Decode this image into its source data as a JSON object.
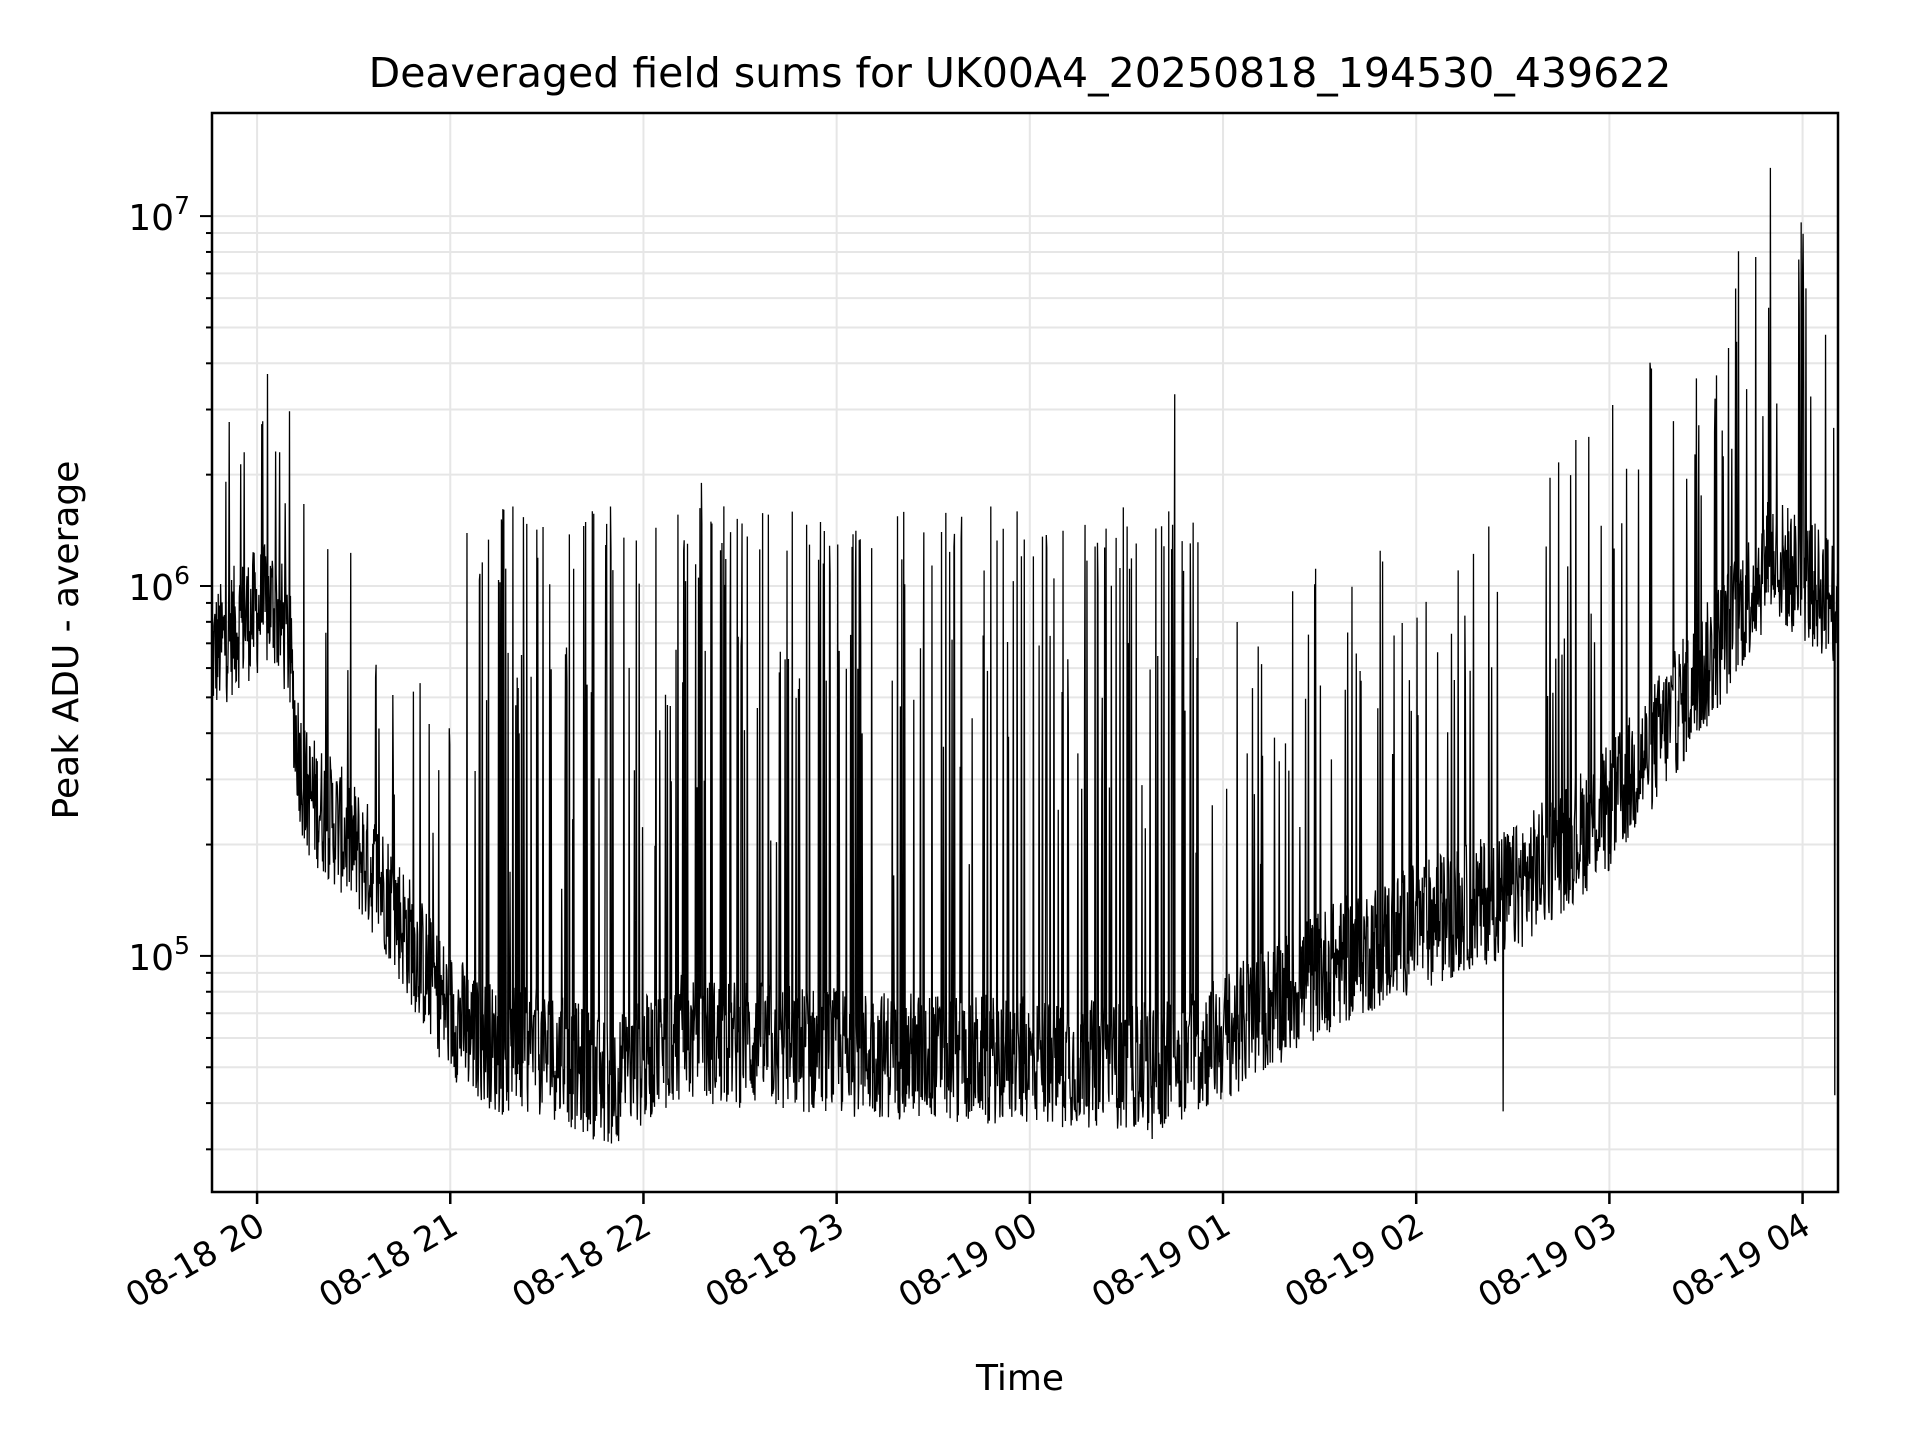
{
  "chart_data": {
    "type": "line",
    "title": "Deaveraged field sums for UK00A4_20250818_194530_439622",
    "xlabel": "Time",
    "ylabel": "Peak ADU - average",
    "x_range": [
      "2025-08-18 19:46",
      "2025-08-19 04:11"
    ],
    "y_scale": "log",
    "ylim": [
      23000,
      19000000
    ],
    "grid": true,
    "colors": {
      "line": "#000000",
      "grid": "#e6e6e6",
      "axes": "#000000"
    },
    "x_ticks": [
      {
        "time": "2025-08-18 20:00",
        "label": "08-18 20"
      },
      {
        "time": "2025-08-18 21:00",
        "label": "08-18 21"
      },
      {
        "time": "2025-08-18 22:00",
        "label": "08-18 22"
      },
      {
        "time": "2025-08-18 23:00",
        "label": "08-18 23"
      },
      {
        "time": "2025-08-19 00:00",
        "label": "08-19 00"
      },
      {
        "time": "2025-08-19 01:00",
        "label": "08-19 01"
      },
      {
        "time": "2025-08-19 02:00",
        "label": "08-19 02"
      },
      {
        "time": "2025-08-19 03:00",
        "label": "08-19 03"
      },
      {
        "time": "2025-08-19 04:00",
        "label": "08-19 04"
      }
    ],
    "y_ticks": [
      {
        "value": 100000,
        "base": "10",
        "exp": "5"
      },
      {
        "value": 1000000,
        "base": "10",
        "exp": "6"
      },
      {
        "value": 10000000,
        "base": "10",
        "exp": "7"
      }
    ],
    "series": [
      {
        "baseline": [
          {
            "time": "2025-08-18 19:46",
            "value": 650000
          },
          {
            "time": "2025-08-18 19:55",
            "value": 800000
          },
          {
            "time": "2025-08-18 20:05",
            "value": 900000
          },
          {
            "time": "2025-08-18 20:10",
            "value": 700000
          },
          {
            "time": "2025-08-18 20:12",
            "value": 400000
          },
          {
            "time": "2025-08-18 20:15",
            "value": 280000
          },
          {
            "time": "2025-08-18 20:30",
            "value": 200000
          },
          {
            "time": "2025-08-18 20:40",
            "value": 150000
          },
          {
            "time": "2025-08-18 20:50",
            "value": 100000
          },
          {
            "time": "2025-08-18 21:00",
            "value": 70000
          },
          {
            "time": "2025-08-18 21:15",
            "value": 55000
          },
          {
            "time": "2025-08-18 21:30",
            "value": 55000
          },
          {
            "time": "2025-08-18 21:50",
            "value": 45000
          },
          {
            "time": "2025-08-18 22:10",
            "value": 60000
          },
          {
            "time": "2025-08-18 23:00",
            "value": 55000
          },
          {
            "time": "2025-08-19 00:00",
            "value": 52000
          },
          {
            "time": "2025-08-19 00:40",
            "value": 50000
          },
          {
            "time": "2025-08-19 01:00",
            "value": 60000
          },
          {
            "time": "2025-08-19 01:30",
            "value": 90000
          },
          {
            "time": "2025-08-19 02:00",
            "value": 120000
          },
          {
            "time": "2025-08-19 02:30",
            "value": 150000
          },
          {
            "time": "2025-08-19 03:00",
            "value": 250000
          },
          {
            "time": "2025-08-19 03:30",
            "value": 600000
          },
          {
            "time": "2025-08-19 03:50",
            "value": 1200000
          },
          {
            "time": "2025-08-19 04:11",
            "value": 900000
          }
        ],
        "peaks": [
          {
            "time": "2025-08-19 03:50",
            "value": 13500000
          },
          {
            "time": "2025-08-19 00:45",
            "value": 3300000
          },
          {
            "time": "2025-08-19 03:37",
            "value": 4400000
          },
          {
            "time": "2025-08-18 20:07",
            "value": 2300000
          },
          {
            "time": "2025-08-18 19:56",
            "value": 2300000
          },
          {
            "time": "2025-08-18 22:18",
            "value": 1900000
          },
          {
            "time": "2025-08-19 03:24",
            "value": 1950000
          }
        ],
        "minima": [
          {
            "time": "2025-08-19 02:27",
            "value": 38000
          },
          {
            "time": "2025-08-18 21:52",
            "value": 33000
          },
          {
            "time": "2025-08-19 00:38",
            "value": 32000
          },
          {
            "time": "2025-08-19 04:10",
            "value": 42000
          }
        ]
      }
    ]
  }
}
